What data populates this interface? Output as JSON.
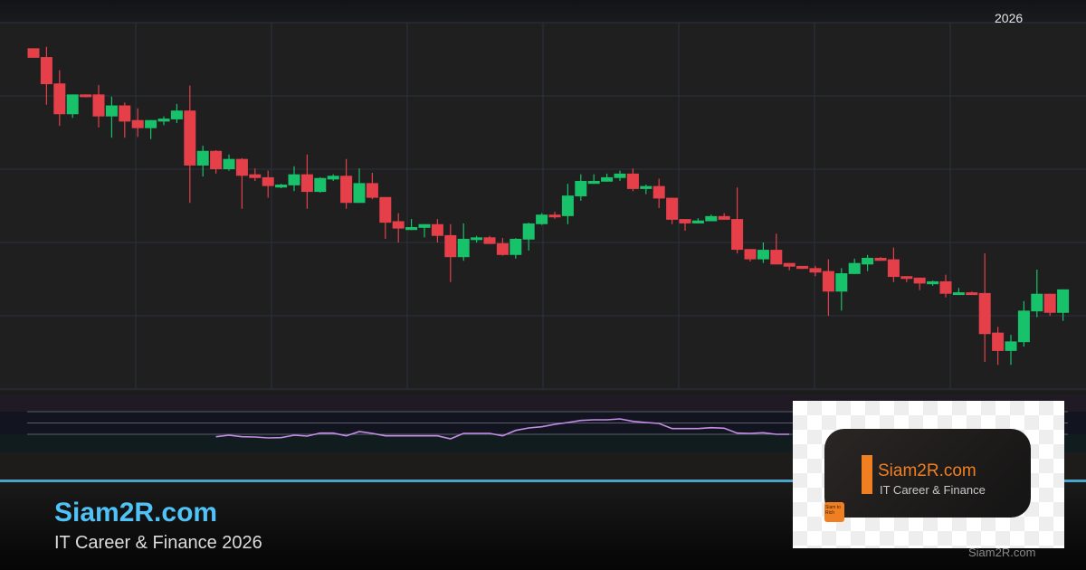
{
  "header": {
    "year_label": "2026"
  },
  "colors": {
    "up": "#17c26a",
    "down": "#e5404a",
    "rsi_line": "#c58ce8",
    "grid": "#2c3140",
    "accent": "#4fc3f7",
    "logo_orange": "#f07f22"
  },
  "chart_data": [
    {
      "type": "candlestick",
      "title": "",
      "xlabel": "",
      "ylabel": "",
      "grid": true,
      "y_axis_labels_shown": false,
      "ohlc_note_fields": [
        "open",
        "high",
        "low",
        "close"
      ],
      "ylim": [
        0,
        50
      ],
      "candles": [
        [
          46.5,
          46.5,
          45.2,
          45.2
        ],
        [
          45.3,
          46.7,
          38.8,
          41.6
        ],
        [
          41.7,
          43.5,
          35.9,
          37.5
        ],
        [
          37.5,
          40.2,
          37.0,
          40.2
        ],
        [
          40.2,
          40.2,
          39.8,
          39.9
        ],
        [
          40.2,
          41.5,
          35.7,
          37.2
        ],
        [
          37.2,
          39.9,
          34.3,
          38.7
        ],
        [
          38.7,
          39.1,
          34.3,
          36.5
        ],
        [
          36.7,
          38.3,
          34.4,
          35.6
        ],
        [
          35.6,
          36.7,
          34.1,
          36.7
        ],
        [
          36.5,
          37.2,
          36.0,
          36.9
        ],
        [
          36.8,
          38.9,
          36.3,
          38.0
        ],
        [
          38.0,
          41.4,
          25.4,
          30.5
        ],
        [
          30.5,
          33.2,
          29.0,
          32.5
        ],
        [
          32.5,
          32.6,
          29.4,
          30.0
        ],
        [
          30.0,
          32.0,
          29.8,
          31.4
        ],
        [
          31.4,
          31.5,
          24.6,
          29.1
        ],
        [
          29.3,
          30.1,
          28.4,
          28.8
        ],
        [
          28.9,
          29.8,
          26.1,
          27.7
        ],
        [
          27.5,
          28.0,
          27.4,
          27.9
        ],
        [
          27.8,
          30.4,
          27.0,
          29.3
        ],
        [
          29.3,
          32.0,
          24.6,
          26.9
        ],
        [
          26.9,
          28.9,
          26.8,
          28.8
        ],
        [
          28.6,
          29.3,
          28.4,
          29.1
        ],
        [
          29.1,
          31.4,
          24.6,
          25.4
        ],
        [
          25.4,
          30.1,
          25.4,
          28.1
        ],
        [
          28.1,
          29.5,
          25.9,
          26.1
        ],
        [
          26.2,
          26.2,
          20.5,
          22.7
        ],
        [
          22.9,
          24.0,
          20.0,
          21.9
        ],
        [
          21.7,
          23.2,
          21.7,
          22.1
        ],
        [
          22.0,
          22.5,
          20.7,
          22.5
        ],
        [
          22.5,
          23.2,
          20.0,
          20.9
        ],
        [
          21.0,
          22.5,
          14.6,
          18.0
        ],
        [
          18.0,
          22.6,
          17.5,
          20.5
        ],
        [
          20.4,
          20.9,
          20.0,
          20.7
        ],
        [
          20.7,
          20.9,
          19.8,
          19.8
        ],
        [
          19.9,
          20.6,
          18.2,
          18.3
        ],
        [
          18.3,
          20.6,
          17.8,
          20.5
        ],
        [
          20.4,
          22.7,
          18.9,
          22.6
        ],
        [
          22.5,
          24.0,
          22.4,
          23.8
        ],
        [
          23.8,
          24.2,
          23.2,
          23.5
        ],
        [
          23.6,
          28.0,
          22.5,
          26.4
        ],
        [
          26.3,
          29.3,
          25.7,
          28.4
        ],
        [
          28.0,
          29.3,
          28.0,
          28.4
        ],
        [
          28.3,
          29.4,
          28.3,
          28.9
        ],
        [
          28.8,
          29.8,
          28.4,
          29.4
        ],
        [
          29.4,
          30.1,
          27.0,
          27.3
        ],
        [
          27.3,
          27.9,
          26.6,
          27.7
        ],
        [
          27.7,
          28.7,
          24.7,
          26.0
        ],
        [
          26.1,
          26.1,
          22.5,
          23.1
        ],
        [
          23.2,
          23.2,
          21.6,
          22.6
        ],
        [
          22.6,
          23.3,
          22.6,
          23.0
        ],
        [
          22.9,
          23.8,
          22.9,
          23.6
        ],
        [
          23.6,
          24.0,
          23.1,
          23.1
        ],
        [
          23.2,
          27.5,
          18.5,
          19.0
        ],
        [
          19.1,
          19.1,
          17.4,
          17.7
        ],
        [
          17.7,
          20.0,
          17.2,
          19.0
        ],
        [
          19.0,
          21.2,
          17.0,
          17.0
        ],
        [
          17.2,
          17.2,
          16.2,
          16.7
        ],
        [
          16.8,
          16.8,
          16.4,
          16.4
        ],
        [
          16.5,
          16.8,
          15.4,
          15.9
        ],
        [
          16.1,
          17.7,
          10.0,
          13.3
        ],
        [
          13.3,
          16.5,
          10.7,
          15.8
        ],
        [
          15.7,
          17.8,
          15.7,
          17.2
        ],
        [
          17.0,
          18.3,
          16.1,
          17.9
        ],
        [
          17.9,
          18.0,
          17.5,
          17.5
        ],
        [
          17.7,
          19.3,
          14.6,
          15.3
        ],
        [
          15.4,
          15.4,
          14.6,
          15.1
        ],
        [
          15.2,
          15.2,
          13.5,
          14.4
        ],
        [
          14.3,
          14.8,
          14.1,
          14.7
        ],
        [
          14.7,
          15.6,
          12.5,
          13.0
        ],
        [
          12.9,
          13.8,
          12.9,
          13.2
        ],
        [
          13.2,
          13.3,
          12.9,
          12.9
        ],
        [
          13.1,
          18.5,
          3.7,
          7.5
        ],
        [
          7.7,
          8.5,
          3.3,
          5.2
        ],
        [
          5.2,
          7.4,
          3.3,
          6.5
        ],
        [
          6.4,
          12.0,
          5.8,
          10.7
        ],
        [
          10.6,
          16.3,
          9.8,
          13.0
        ],
        [
          13.0,
          13.0,
          10.0,
          10.4
        ],
        [
          10.4,
          13.6,
          9.3,
          13.6
        ]
      ]
    },
    {
      "type": "line",
      "title": "",
      "indicator_pane": true,
      "ylim": [
        0,
        100
      ],
      "reference_levels": [
        70,
        50,
        30
      ],
      "start_candle_index": 14,
      "values": [
        25.7,
        28.4,
        25.7,
        25.2,
        23.6,
        24.1,
        28.4,
        26.8,
        32.1,
        32.1,
        27.3,
        34.8,
        31.6,
        27.3,
        27.3,
        27.3,
        27.3,
        27.3,
        22.0,
        31.6,
        31.6,
        31.6,
        27.3,
        36.9,
        41.2,
        43.3,
        47.6,
        50.8,
        54.5,
        55.6,
        55.6,
        57.2,
        52.9,
        50.8,
        49.2,
        40.1,
        40.1,
        40.1,
        41.7,
        40.7,
        32.1,
        31.6,
        32.7,
        30.0,
        30.0
      ]
    }
  ],
  "banner": {
    "brand": "Siam2R.com",
    "tagline": "IT Career & Finance 2026"
  },
  "logo": {
    "name": "Siam2R.com",
    "subtitle": "IT Career & Finance",
    "badge": "Siam to Rich"
  },
  "watermark": "Siam2R.com"
}
